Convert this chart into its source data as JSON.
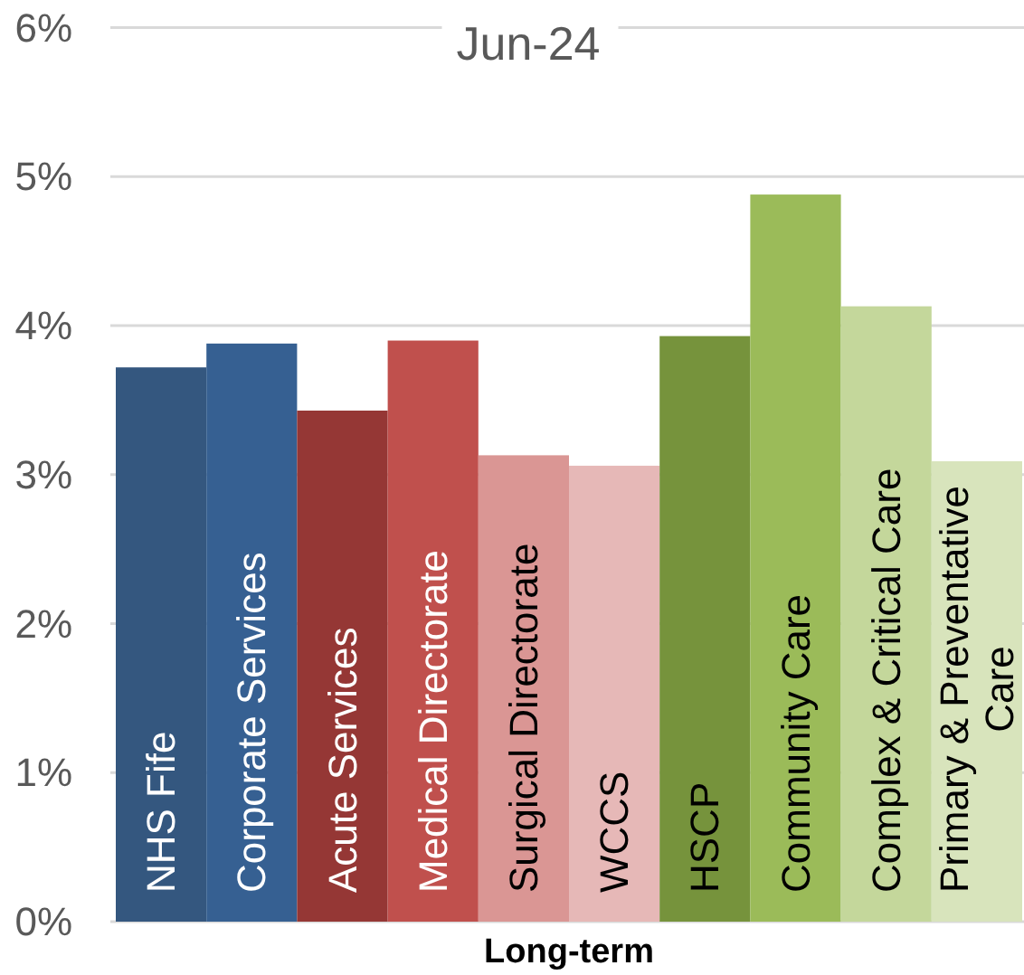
{
  "chart_data": {
    "type": "bar",
    "title": "Jun-24",
    "xlabel": "Long-term",
    "categories": [
      "NHS Fife",
      "Corporate Services",
      "Acute Services",
      "Medical Directorate",
      "Surgical Directorate",
      "WCCS",
      "HSCP",
      "Community Care",
      "Complex & Critical Care",
      "Primary & Preventative Care"
    ],
    "values": [
      3.72,
      3.88,
      3.43,
      3.9,
      3.13,
      3.06,
      3.93,
      4.88,
      4.13,
      3.09
    ],
    "colors": [
      "#34577f",
      "#366092",
      "#953735",
      "#c0504d",
      "#da9694",
      "#e6b8b7",
      "#76933c",
      "#9bbb59",
      "#c4d79b",
      "#d8e4bc"
    ],
    "ylim": [
      0,
      6
    ],
    "yticks": [
      {
        "value": 0,
        "label": "0%"
      },
      {
        "value": 1,
        "label": "1%"
      },
      {
        "value": 2,
        "label": "2%"
      },
      {
        "value": 3,
        "label": "3%"
      },
      {
        "value": 4,
        "label": "4%"
      },
      {
        "value": 5,
        "label": "5%"
      },
      {
        "value": 6,
        "label": "6%"
      }
    ],
    "grid": "y"
  }
}
